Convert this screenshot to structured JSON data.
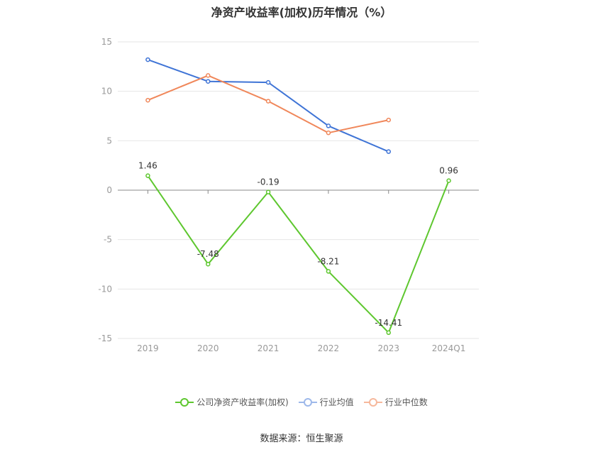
{
  "chart_data": {
    "type": "line",
    "title": "净资产收益率(加权)历年情况（%）",
    "categories": [
      "2019",
      "2020",
      "2021",
      "2022",
      "2023",
      "2024Q1"
    ],
    "ylim": [
      -15,
      15
    ],
    "yticks": [
      15,
      10,
      5,
      0,
      -5,
      -10,
      -15
    ],
    "grid": true,
    "legend_position": "bottom",
    "series": [
      {
        "name": "公司净资产收益率(加权)",
        "color": "#5ec72f",
        "values": [
          1.46,
          -7.48,
          -0.19,
          -8.21,
          -14.41,
          0.96
        ],
        "labels": [
          "1.46",
          "-7.48",
          "-0.19",
          "-8.21",
          "-14.41",
          "0.96"
        ]
      },
      {
        "name": "行业均值",
        "color": "#3f74d6",
        "values": [
          13.2,
          11.0,
          10.9,
          6.5,
          3.9,
          null
        ]
      },
      {
        "name": "行业中位数",
        "color": "#f0875a",
        "values": [
          9.1,
          11.6,
          9.0,
          5.8,
          7.1,
          null
        ]
      }
    ]
  },
  "source": "数据来源：恒生聚源"
}
